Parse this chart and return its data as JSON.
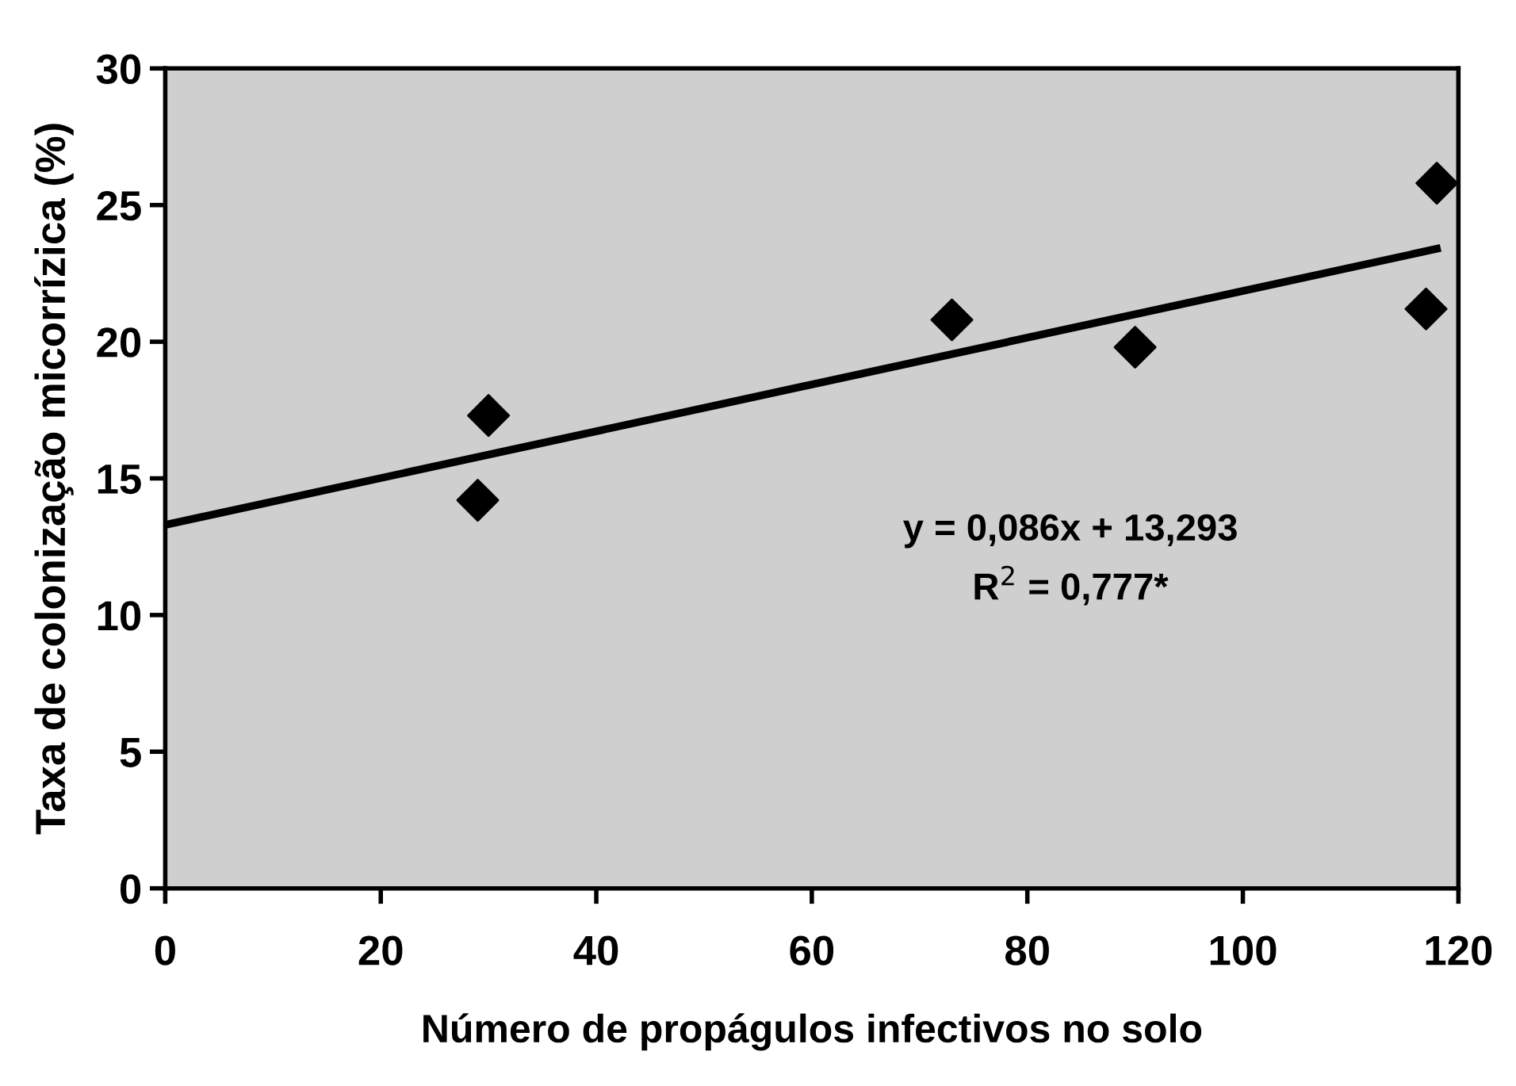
{
  "chart_data": {
    "type": "scatter",
    "xlabel": "Número de propágulos infectivos no solo",
    "ylabel": "Taxa de colonização micorrízica (%)",
    "xlim": [
      0,
      120
    ],
    "xticks": [
      0,
      20,
      40,
      60,
      80,
      100,
      120
    ],
    "ylim": [
      0,
      30
    ],
    "yticks": [
      0,
      5,
      10,
      15,
      20,
      25,
      30
    ],
    "grid": false,
    "marker": "diamond",
    "series": [
      {
        "color": "#000000",
        "x": [
          29,
          30,
          73,
          90,
          117,
          118
        ],
        "values": [
          14.2,
          17.3,
          20.8,
          19.8,
          21.2,
          25.8
        ]
      },
      {
        "type": "line",
        "color": "#000000",
        "marker": "none",
        "line_style": "solid",
        "x": [
          0,
          118
        ],
        "values": [
          13.3,
          23.4
        ]
      }
    ],
    "annotations": [
      "y = 0,086x + 13,293\nR$^{2}$ = 0,777*"
    ]
  }
}
